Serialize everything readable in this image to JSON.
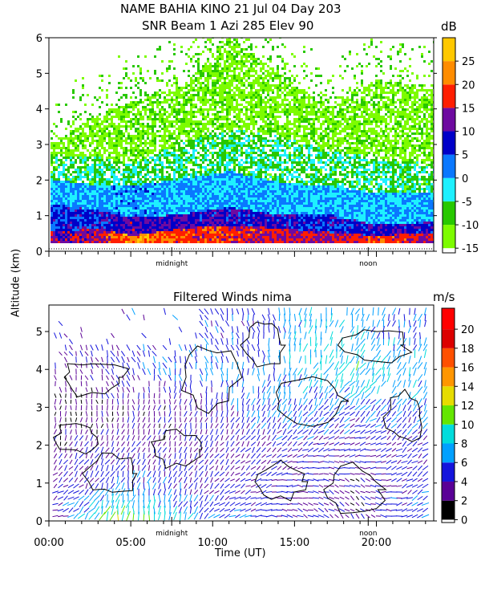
{
  "header": {
    "title_line1": "NAME BAHIA KINO  21 Jul 04 Day 203",
    "title_line2": "SNR Beam 1 Azi 285 Elev 90"
  },
  "shared": {
    "y_axis_label": "Altitude (km)",
    "x_axis_label": "Time (UT)",
    "x_ticks": [
      "00:00",
      "05:00",
      "10:00",
      "15:00",
      "20:00"
    ],
    "midnight_label": "midnight",
    "noon_label": "noon"
  },
  "chart_data": [
    {
      "type": "heatmap",
      "title": "SNR Beam 1 Azi 285 Elev 90",
      "xlabel": "",
      "ylabel": "Altitude (km)",
      "xlim_hours": [
        0,
        23.5
      ],
      "ylim_km": [
        0,
        6
      ],
      "y_ticks": [
        "0",
        "1",
        "2",
        "3",
        "4",
        "5",
        "6"
      ],
      "colorbar": {
        "unit": "dB",
        "ticks": [
          "-15",
          "-10",
          "-5",
          "0",
          "5",
          "10",
          "15",
          "20",
          "25"
        ],
        "levels": [
          {
            "min": -15,
            "color": "#7dfc00"
          },
          {
            "min": -10,
            "color": "#28c800"
          },
          {
            "min": -5,
            "color": "#1ef0ff"
          },
          {
            "min": 0,
            "color": "#0a78ff"
          },
          {
            "min": 5,
            "color": "#0000c8"
          },
          {
            "min": 10,
            "color": "#6e0aa0"
          },
          {
            "min": 15,
            "color": "#ff1e00"
          },
          {
            "min": 20,
            "color": "#ff8c00"
          },
          {
            "min": 25,
            "color": "#ffc800"
          }
        ]
      },
      "profile_by_hour": [
        {
          "hour": 0,
          "layers": [
            {
              "top_km": 0.5,
              "db": 12
            },
            {
              "top_km": 1.3,
              "db": 6
            },
            {
              "top_km": 2.0,
              "db": 0
            },
            {
              "top_km": 2.6,
              "db": -7
            },
            {
              "top_km": 3.0,
              "db": -12
            }
          ]
        },
        {
          "hour": 3,
          "layers": [
            {
              "top_km": 0.6,
              "db": 14
            },
            {
              "top_km": 1.1,
              "db": 7
            },
            {
              "top_km": 1.8,
              "db": 0
            },
            {
              "top_km": 2.6,
              "db": -6
            },
            {
              "top_km": 3.8,
              "db": -12
            }
          ]
        },
        {
          "hour": 5,
          "layers": [
            {
              "top_km": 0.4,
              "db": 24
            },
            {
              "top_km": 0.9,
              "db": 11
            },
            {
              "top_km": 1.8,
              "db": 2
            },
            {
              "top_km": 2.4,
              "db": -5
            },
            {
              "top_km": 4.2,
              "db": -12
            }
          ]
        },
        {
          "hour": 8,
          "layers": [
            {
              "top_km": 0.6,
              "db": 18
            },
            {
              "top_km": 1.0,
              "db": 9
            },
            {
              "top_km": 2.0,
              "db": 0
            },
            {
              "top_km": 3.0,
              "db": -6
            },
            {
              "top_km": 4.6,
              "db": -12
            }
          ]
        },
        {
          "hour": 11,
          "layers": [
            {
              "top_km": 0.7,
              "db": 17
            },
            {
              "top_km": 1.2,
              "db": 9
            },
            {
              "top_km": 2.2,
              "db": 0
            },
            {
              "top_km": 3.4,
              "db": -6
            },
            {
              "top_km": 6.0,
              "db": -12
            }
          ]
        },
        {
          "hour": 14,
          "layers": [
            {
              "top_km": 0.6,
              "db": 15
            },
            {
              "top_km": 1.0,
              "db": 8
            },
            {
              "top_km": 1.9,
              "db": 0
            },
            {
              "top_km": 3.2,
              "db": -6
            },
            {
              "top_km": 5.0,
              "db": -12
            }
          ]
        },
        {
          "hour": 17,
          "layers": [
            {
              "top_km": 0.5,
              "db": 14
            },
            {
              "top_km": 1.0,
              "db": 7
            },
            {
              "top_km": 1.8,
              "db": 0
            },
            {
              "top_km": 2.8,
              "db": -6
            },
            {
              "top_km": 4.0,
              "db": -12
            }
          ]
        },
        {
          "hour": 20,
          "layers": [
            {
              "top_km": 0.4,
              "db": 18
            },
            {
              "top_km": 0.7,
              "db": 9
            },
            {
              "top_km": 1.6,
              "db": 0
            },
            {
              "top_km": 2.6,
              "db": -6
            },
            {
              "top_km": 4.8,
              "db": -12
            }
          ]
        },
        {
          "hour": 23.5,
          "layers": [
            {
              "top_km": 0.5,
              "db": 14
            },
            {
              "top_km": 0.8,
              "db": 8
            },
            {
              "top_km": 1.6,
              "db": 0
            },
            {
              "top_km": 2.4,
              "db": -6
            },
            {
              "top_km": 4.5,
              "db": -12
            }
          ]
        }
      ]
    },
    {
      "type": "scatter",
      "title": "Filtered Winds nima",
      "xlabel": "Time (UT)",
      "ylabel": "Altitude (km)",
      "xlim_hours": [
        0,
        23.5
      ],
      "ylim_km": [
        0,
        5.7
      ],
      "y_ticks": [
        "0",
        "1",
        "2",
        "3",
        "4",
        "5"
      ],
      "colorbar": {
        "unit": "m/s",
        "ticks": [
          "0",
          "2",
          "4",
          "6",
          "8",
          "10",
          "12",
          "14",
          "16",
          "18",
          "20"
        ],
        "levels": [
          {
            "min": 0,
            "color": "#000000"
          },
          {
            "min": 2,
            "color": "#5a0096"
          },
          {
            "min": 4,
            "color": "#1414dc"
          },
          {
            "min": 6,
            "color": "#00a0ff"
          },
          {
            "min": 8,
            "color": "#00dcdc"
          },
          {
            "min": 10,
            "color": "#64e600"
          },
          {
            "min": 12,
            "color": "#e6dc00"
          },
          {
            "min": 14,
            "color": "#ff9600"
          },
          {
            "min": 16,
            "color": "#ff5000"
          },
          {
            "min": 18,
            "color": "#dc0000"
          },
          {
            "min": 20,
            "color": "#ff0000"
          }
        ]
      },
      "wind_field": [
        {
          "hour": 1,
          "speed_by_km": [
            5,
            4,
            3,
            2,
            3,
            4
          ],
          "dir_deg_by_km": [
            250,
            230,
            200,
            180,
            160,
            150
          ]
        },
        {
          "hour": 4,
          "speed_by_km": [
            12,
            6,
            4,
            3,
            4,
            5
          ],
          "dir_deg_by_km": [
            190,
            200,
            210,
            170,
            160,
            150
          ]
        },
        {
          "hour": 7,
          "speed_by_km": [
            9,
            5,
            3,
            3,
            6,
            5
          ],
          "dir_deg_by_km": [
            180,
            190,
            200,
            190,
            160,
            150
          ]
        },
        {
          "hour": 10,
          "speed_by_km": [
            6,
            4,
            4,
            4,
            6,
            5
          ],
          "dir_deg_by_km": [
            230,
            220,
            210,
            190,
            170,
            160
          ]
        },
        {
          "hour": 13,
          "speed_by_km": [
            5,
            4,
            4,
            6,
            6,
            5
          ],
          "dir_deg_by_km": [
            260,
            250,
            220,
            200,
            180,
            170
          ]
        },
        {
          "hour": 16,
          "speed_by_km": [
            4,
            4,
            5,
            6,
            8,
            8
          ],
          "dir_deg_by_km": [
            300,
            280,
            240,
            210,
            200,
            190
          ]
        },
        {
          "hour": 19,
          "speed_by_km": [
            3,
            3,
            4,
            6,
            9,
            7
          ],
          "dir_deg_by_km": [
            320,
            300,
            260,
            220,
            210,
            200
          ]
        },
        {
          "hour": 22,
          "speed_by_km": [
            6,
            5,
            4,
            6,
            8,
            6
          ],
          "dir_deg_by_km": [
            250,
            240,
            230,
            210,
            200,
            190
          ]
        }
      ]
    }
  ]
}
